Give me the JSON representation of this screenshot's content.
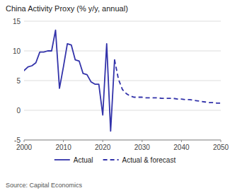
{
  "chart_data": {
    "type": "line",
    "title": "China Activity Proxy (% y/y, annual)",
    "annotations": [
      "Source: Capital Economics"
    ],
    "xlim": [
      2000,
      2050
    ],
    "xticks": [
      2000,
      2010,
      2020,
      2030,
      2040,
      2050
    ],
    "ylim": [
      -5,
      15
    ],
    "yticks": [
      -5,
      0,
      5,
      10,
      15
    ],
    "grid": true,
    "legend": "bottom",
    "series": [
      {
        "name": "Actual",
        "color": "#3333aa",
        "line_style": "solid",
        "x": [
          2000,
          2001,
          2002,
          2003,
          2004,
          2005,
          2006,
          2007,
          2008,
          2009,
          2010,
          2011,
          2012,
          2013,
          2014,
          2015,
          2016,
          2017,
          2018,
          2019,
          2020,
          2021,
          2022,
          2023
        ],
        "values": [
          6.7,
          7.3,
          7.5,
          8.0,
          9.8,
          9.8,
          10.0,
          10.0,
          13.5,
          3.7,
          7.3,
          11.2,
          11.0,
          8.5,
          8.3,
          6.2,
          6.0,
          4.8,
          4.4,
          4.4,
          -0.8,
          11.2,
          -3.5,
          8.5
        ]
      },
      {
        "name": "Actual & forecast",
        "color": "#3333aa",
        "line_style": "dashed",
        "x": [
          2023,
          2024,
          2025,
          2026,
          2027,
          2028,
          2029,
          2030,
          2031,
          2032,
          2033,
          2034,
          2035,
          2036,
          2037,
          2038,
          2039,
          2040,
          2041,
          2042,
          2043,
          2044,
          2045,
          2046,
          2047,
          2048,
          2049,
          2050
        ],
        "values": [
          8.5,
          5.2,
          3.5,
          2.8,
          2.4,
          2.2,
          2.2,
          2.2,
          2.1,
          2.1,
          2.1,
          2.1,
          2.0,
          2.0,
          2.0,
          2.0,
          1.9,
          1.9,
          1.8,
          1.8,
          1.7,
          1.6,
          1.5,
          1.4,
          1.3,
          1.3,
          1.2,
          1.2
        ]
      }
    ]
  }
}
